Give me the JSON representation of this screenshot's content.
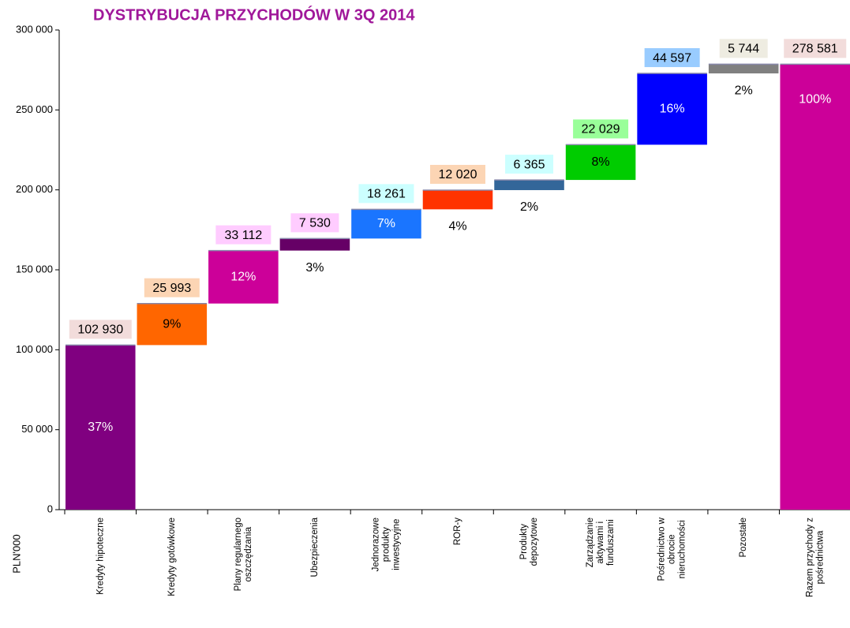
{
  "chart_data": {
    "type": "waterfall",
    "title": "DYSTRYBUCJA PRZYCHODÓW W 3Q 2014",
    "y_label": "PLN'000",
    "categories": [
      [
        "Kredyty hipoteczne"
      ],
      [
        "Kredyty gotówkowe"
      ],
      [
        "Plany regularnego",
        "oszczędzania"
      ],
      [
        "Ubezpieczenia"
      ],
      [
        "Jednorazowe",
        "produkty",
        "inwestycyjne"
      ],
      [
        "ROR-y"
      ],
      [
        "Produkty",
        "depozytowe"
      ],
      [
        "Zarządzanie",
        "aktywami i",
        "funduszami"
      ],
      [
        "Pośrednictwo w",
        "obrocie",
        "nieruchomości"
      ],
      [
        "Pozostałe"
      ],
      [
        "Razem przychody z",
        "pośrednictwa"
      ]
    ],
    "values": [
      102930,
      25993,
      33112,
      7530,
      18261,
      12020,
      6365,
      22029,
      44597,
      5744,
      278581
    ],
    "value_labels": [
      "102 930",
      "25 993",
      "33 112",
      "7 530",
      "18 261",
      "12 020",
      "6 365",
      "22 029",
      "44 597",
      "5 744",
      "278 581"
    ],
    "share_labels": [
      "37%",
      "9%",
      "12%",
      "3%",
      "7%",
      "4%",
      "2%",
      "8%",
      "16%",
      "2%",
      "100%"
    ],
    "colors": [
      "#800080",
      "#ff6600",
      "#cc0099",
      "#660066",
      "#1a75ff",
      "#ff3300",
      "#336699",
      "#00cc00",
      "#0000ff",
      "#808080",
      "#cc0099"
    ],
    "label_box_colors": [
      "#f2dcdb",
      "#fcd5b4",
      "#ffccff",
      "#ffccff",
      "#ccffff",
      "#fcd5b4",
      "#ccffff",
      "#99ff99",
      "#99ccff",
      "#eeece1",
      "#f2dcdb"
    ],
    "share_label_colors": [
      "#ffffff",
      "#000000",
      "#ffffff",
      "#000000",
      "#ffffff",
      "#000000",
      "#000000",
      "#000000",
      "#ffffff",
      "#000000",
      "#ffffff"
    ],
    "ylim": [
      0,
      300000
    ],
    "yticks": [
      0,
      {
        "value": 50000,
        "label": "50 000"
      },
      {
        "value": 100000,
        "label": "100 000"
      },
      {
        "value": 150000,
        "label": "150 000"
      },
      {
        "value": 200000,
        "label": "200 000"
      },
      {
        "value": 250000,
        "label": "250 000"
      },
      {
        "value": 300000,
        "label": "300 000"
      }
    ]
  }
}
